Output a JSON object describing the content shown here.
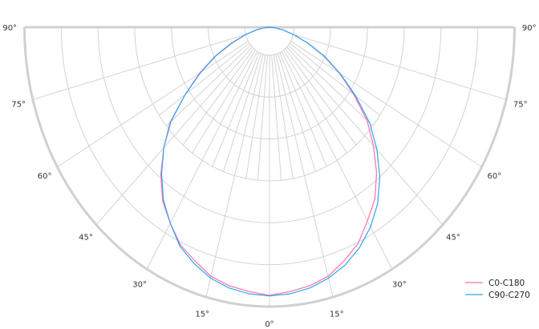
{
  "chart_data": {
    "type": "polar",
    "title": "",
    "angle_ticks": [
      {
        "angle": -90,
        "label": "90°"
      },
      {
        "angle": -75,
        "label": "75°"
      },
      {
        "angle": -60,
        "label": "60°"
      },
      {
        "angle": -45,
        "label": "45°"
      },
      {
        "angle": -30,
        "label": "30°"
      },
      {
        "angle": -15,
        "label": "15°"
      },
      {
        "angle": 0,
        "label": "0°"
      },
      {
        "angle": 15,
        "label": "15°"
      },
      {
        "angle": 30,
        "label": "30°"
      },
      {
        "angle": 45,
        "label": "45°"
      },
      {
        "angle": 60,
        "label": "60°"
      },
      {
        "angle": 75,
        "label": "75°"
      },
      {
        "angle": 90,
        "label": "90°"
      }
    ],
    "radial_rings": [
      0.1,
      0.25,
      0.4,
      0.55,
      0.7,
      0.85,
      1.0
    ],
    "radial_range": [
      0,
      1
    ],
    "grid": true,
    "legend_position": "bottom-right",
    "series": [
      {
        "name": "C0-C180",
        "color": "#ff70a6",
        "angles": [
          -90,
          -85,
          -80,
          -75,
          -70,
          -65,
          -60,
          -55,
          -50,
          -45,
          -40,
          -35,
          -30,
          -25,
          -20,
          -15,
          -10,
          -5,
          0,
          5,
          10,
          15,
          20,
          25,
          30,
          35,
          40,
          45,
          50,
          55,
          60,
          65,
          70,
          75,
          80,
          85,
          90
        ],
        "values": [
          0,
          0.02,
          0.055,
          0.1,
          0.165,
          0.245,
          0.33,
          0.42,
          0.53,
          0.61,
          0.69,
          0.76,
          0.81,
          0.86,
          0.89,
          0.923,
          0.94,
          0.95,
          0.96,
          0.95,
          0.94,
          0.923,
          0.89,
          0.855,
          0.8,
          0.75,
          0.68,
          0.6,
          0.52,
          0.42,
          0.33,
          0.245,
          0.165,
          0.1,
          0.055,
          0.02,
          0
        ]
      },
      {
        "name": "C90-C270",
        "color": "#2ea6f2",
        "angles": [
          -90,
          -85,
          -80,
          -75,
          -70,
          -65,
          -60,
          -55,
          -50,
          -45,
          -40,
          -35,
          -30,
          -25,
          -20,
          -15,
          -10,
          -5,
          0,
          5,
          10,
          15,
          20,
          25,
          30,
          35,
          40,
          45,
          50,
          55,
          60,
          65,
          70,
          75,
          80,
          85,
          90
        ],
        "values": [
          0,
          0.02,
          0.053,
          0.098,
          0.16,
          0.24,
          0.325,
          0.42,
          0.525,
          0.61,
          0.685,
          0.755,
          0.81,
          0.865,
          0.9,
          0.93,
          0.948,
          0.958,
          0.962,
          0.958,
          0.948,
          0.93,
          0.905,
          0.87,
          0.825,
          0.77,
          0.7,
          0.62,
          0.535,
          0.43,
          0.335,
          0.25,
          0.168,
          0.102,
          0.056,
          0.02,
          0
        ]
      }
    ]
  }
}
